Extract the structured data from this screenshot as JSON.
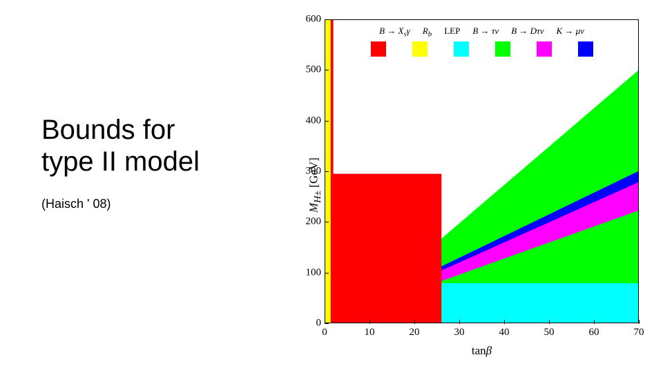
{
  "title_line1": "Bounds for",
  "title_line2": "type II model",
  "citation": "(Haisch ' 08)",
  "chart": {
    "type": "exclusion-plot",
    "xlabel": "tanβ",
    "ylabel_html": "M_{H±} [GeV]",
    "xlim": [
      0,
      70
    ],
    "ylim": [
      0,
      600
    ],
    "xticks": [
      0,
      10,
      20,
      30,
      40,
      50,
      60,
      70
    ],
    "yticks": [
      0,
      100,
      200,
      300,
      400,
      500,
      600
    ],
    "tick_fontsize": 15,
    "label_fontsize": 17,
    "font_family": "Times New Roman",
    "background_color": "#ffffff",
    "border_color": "#000000",
    "legend": {
      "position": "top-inside",
      "items": [
        {
          "label": "B → X_sγ",
          "color": "#ff0000"
        },
        {
          "label": "R_b",
          "color": "#ffff00"
        },
        {
          "label": "LEP",
          "color": "#00ffff"
        },
        {
          "label": "B → τν",
          "color": "#00ff00"
        },
        {
          "label": "B → Dτν",
          "color": "#ff00ff"
        },
        {
          "label": "K → μν",
          "color": "#0000ff"
        }
      ]
    },
    "regions": [
      {
        "name": "B_to_tau_nu",
        "color": "#00ff00",
        "polygon_xy": [
          [
            0,
            0
          ],
          [
            70,
            0
          ],
          [
            70,
            500
          ],
          [
            4,
            0
          ]
        ]
      },
      {
        "name": "K_to_mu_nu",
        "color": "#0000ff",
        "polygon_xy": [
          [
            0,
            0
          ],
          [
            70,
            300
          ],
          [
            70,
            272
          ],
          [
            0,
            0
          ]
        ]
      },
      {
        "name": "B_to_D_tau_nu",
        "color": "#ff00ff",
        "polygon_xy": [
          [
            0,
            0
          ],
          [
            70,
            278
          ],
          [
            70,
            222
          ],
          [
            0,
            0
          ]
        ]
      },
      {
        "name": "LEP",
        "color": "#00ffff",
        "polygon_xy": [
          [
            0,
            0
          ],
          [
            70,
            0
          ],
          [
            70,
            78
          ],
          [
            0,
            78
          ]
        ]
      },
      {
        "name": "B_to_Xs_gamma_main",
        "color": "#ff0000",
        "polygon_xy": [
          [
            0,
            0
          ],
          [
            26,
            0
          ],
          [
            26,
            295
          ],
          [
            0,
            295
          ]
        ]
      },
      {
        "name": "B_to_Xs_gamma_spike",
        "color": "#ff0000",
        "polygon_xy": [
          [
            0,
            0
          ],
          [
            1.8,
            0
          ],
          [
            1.8,
            600
          ],
          [
            0,
            600
          ]
        ]
      },
      {
        "name": "R_b",
        "color": "#ffff00",
        "polygon_xy": [
          [
            0,
            0
          ],
          [
            1.2,
            0
          ],
          [
            1.2,
            600
          ],
          [
            0,
            600
          ]
        ]
      }
    ]
  }
}
